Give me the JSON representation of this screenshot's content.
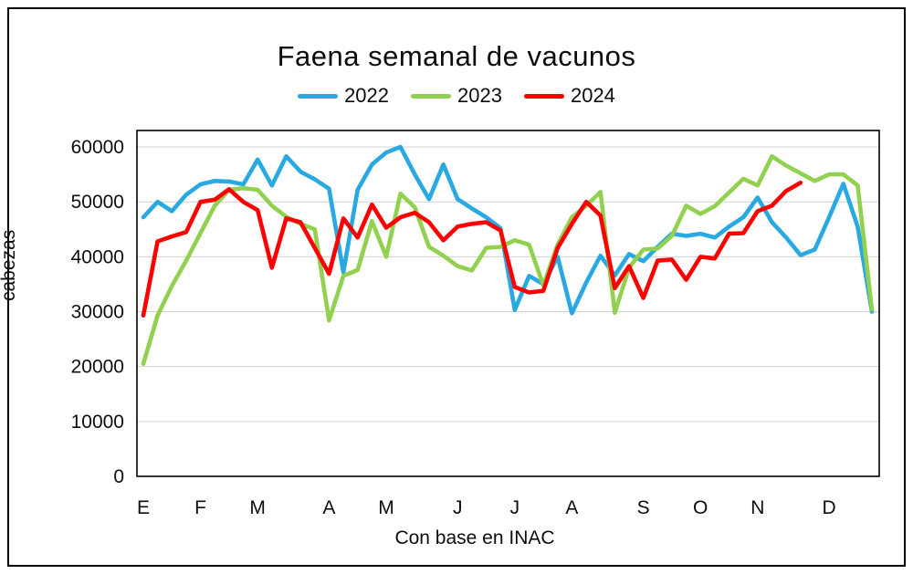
{
  "title": "Faena semanal de vacunos",
  "y_axis_title": "cabezas",
  "x_axis_caption": "Con base en INAC",
  "legend": {
    "items": [
      "2022",
      "2023",
      "2024"
    ]
  },
  "colors": {
    "series_2022": "#29A9E1",
    "series_2023": "#92D050",
    "series_2024": "#FF0000",
    "gridline": "#D0D0D0",
    "plot_border": "#000000"
  },
  "chart_data": {
    "type": "line",
    "title": "Faena semanal de vacunos",
    "xlabel": "Con base en INAC",
    "ylabel": "cabezas",
    "x_unit": "week_of_year",
    "ylim": [
      0,
      63000
    ],
    "y_ticks": [
      0,
      10000,
      20000,
      30000,
      40000,
      50000,
      60000
    ],
    "grid": "horizontal-only",
    "legend_position": "top",
    "month_labels": [
      "E",
      "F",
      "M",
      "A",
      "M",
      "J",
      "J",
      "A",
      "S",
      "O",
      "N",
      "D"
    ],
    "month_start_weeks": [
      1,
      5,
      9,
      14,
      18,
      23,
      27,
      31,
      36,
      40,
      44,
      49
    ],
    "weeks_per_year": 52,
    "series": [
      {
        "name": "2022",
        "color": "#29A9E1",
        "values": [
          47200,
          50000,
          48300,
          51300,
          53200,
          53800,
          53700,
          53200,
          57700,
          53000,
          58300,
          55500,
          54100,
          52400,
          37200,
          52200,
          56800,
          59000,
          60000,
          55000,
          50500,
          56800,
          50500,
          48800,
          47200,
          45200,
          30300,
          36500,
          35000,
          40000,
          29700,
          35300,
          40200,
          36600,
          40500,
          39200,
          41800,
          44200,
          43800,
          44200,
          43500,
          45500,
          47200,
          50800,
          46300,
          43500,
          40300,
          41300,
          47200,
          53300,
          45500,
          30000
        ]
      },
      {
        "name": "2023",
        "color": "#92D050",
        "values": [
          20500,
          29300,
          34700,
          39300,
          44300,
          49300,
          52200,
          52500,
          52200,
          49300,
          47300,
          46000,
          45000,
          28400,
          36500,
          37600,
          46500,
          40000,
          51500,
          49000,
          41800,
          40200,
          38300,
          37500,
          41600,
          41800,
          43000,
          42200,
          34800,
          42200,
          47200,
          49300,
          51800,
          29800,
          38000,
          41300,
          41500,
          43800,
          49300,
          47800,
          49200,
          51700,
          54200,
          53000,
          58300,
          56600,
          55200,
          53800,
          55000,
          55000,
          53000,
          30400
        ]
      },
      {
        "name": "2024",
        "color": "#FF0000",
        "values": [
          29300,
          42800,
          43700,
          44500,
          50000,
          50400,
          52300,
          50000,
          48500,
          38000,
          47000,
          46300,
          41600,
          36900,
          47000,
          43500,
          49500,
          45300,
          47200,
          48000,
          46300,
          43000,
          45500,
          46000,
          46300,
          44800,
          34500,
          33500,
          33800,
          41600,
          46000,
          50000,
          47500,
          34300,
          38300,
          32500,
          39300,
          39500,
          35800,
          40000,
          39700,
          44200,
          44300,
          48300,
          49300,
          52000,
          53500
        ]
      }
    ]
  }
}
